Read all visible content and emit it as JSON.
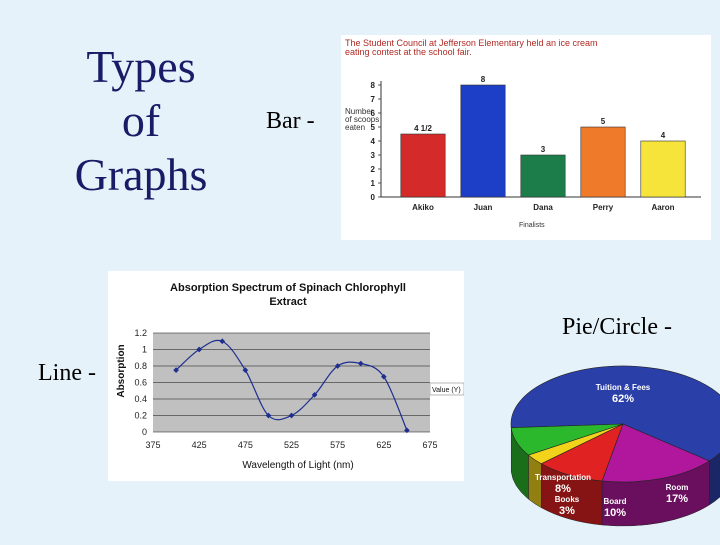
{
  "slide": {
    "title_lines": [
      "Types",
      "of",
      "Graphs"
    ],
    "bar_label": "Bar -",
    "line_label": "Line -",
    "pie_label": "Pie/Circle -"
  },
  "colors": {
    "background": "#e6f2fa",
    "title": "#1a1a66"
  },
  "chart_data": [
    {
      "type": "bar",
      "title": "The Student Council at Jefferson Elementary held an ice cream eating contest at the school fair.",
      "ylabel": "Number of scoops eaten",
      "xlabel": "Finalists",
      "categories": [
        "Akiko",
        "Juan",
        "Dana",
        "Perry",
        "Aaron"
      ],
      "values": [
        4.5,
        8,
        3,
        5,
        4
      ],
      "value_labels": [
        "4 1/2",
        "8",
        "3",
        "5",
        "4"
      ],
      "colors": [
        "#d42a2a",
        "#1d3ec6",
        "#1d7d4a",
        "#ef7a2a",
        "#f6e43a"
      ],
      "ylim": [
        0,
        8
      ],
      "yticks": [
        "0",
        "1",
        "2",
        "3",
        "4",
        "5",
        "6",
        "7",
        "8"
      ]
    },
    {
      "type": "line",
      "title": "Absorption Spectrum of Spinach Chlorophyll Extract",
      "xlabel": "Wavelength of Light (nm)",
      "ylabel": "Absorption",
      "legend": "Value (Y)",
      "xticks": [
        "375",
        "425",
        "475",
        "525",
        "575",
        "625",
        "675"
      ],
      "yticks": [
        "0",
        "0.2",
        "0.4",
        "0.6",
        "0.8",
        "1",
        "1.2"
      ],
      "xlim": [
        375,
        675
      ],
      "ylim": [
        0,
        1.2
      ],
      "x": [
        400,
        425,
        450,
        475,
        500,
        525,
        550,
        575,
        600,
        625,
        650
      ],
      "y": [
        0.75,
        1.0,
        1.1,
        0.75,
        0.2,
        0.2,
        0.45,
        0.8,
        0.83,
        0.67,
        0.02
      ]
    },
    {
      "type": "pie",
      "labels": [
        "Tuition & Fees",
        "Room",
        "Board",
        "Books",
        "Transportation"
      ],
      "value_labels": [
        "62%",
        "17%",
        "10%",
        "3%",
        "8%"
      ],
      "values": [
        62,
        17,
        10,
        3,
        8
      ],
      "colors": [
        "#2b3fa8",
        "#b0179c",
        "#e02222",
        "#f2d31c",
        "#2cb82c"
      ]
    }
  ]
}
